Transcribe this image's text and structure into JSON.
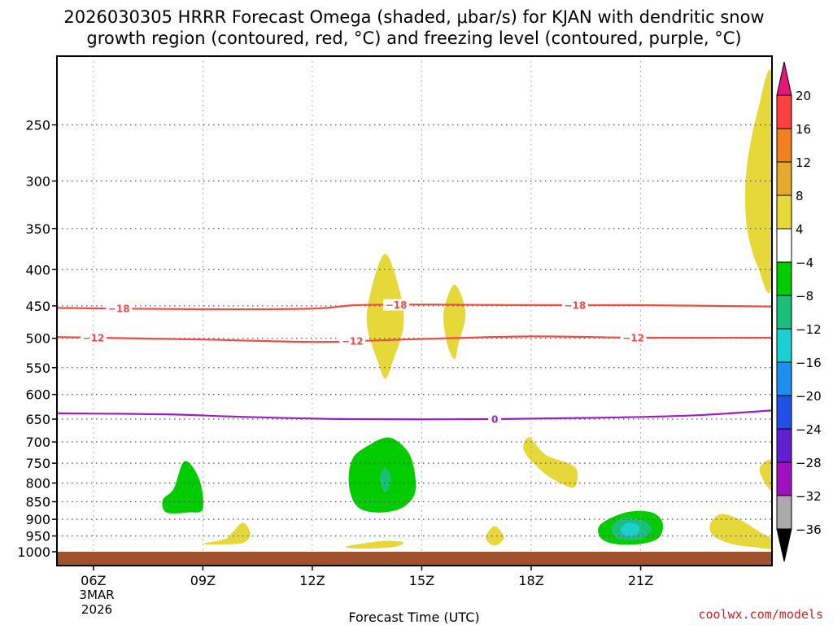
{
  "title_line1": "2026030305 HRRR Forecast Omega (shaded, μbar/s) for KJAN with dendritic snow",
  "title_line2": "growth region (contoured, red, °C) and freezing level (contoured, purple, °C)",
  "xlabel": "Forecast Time (UTC)",
  "date_label": [
    "3MAR",
    "2026"
  ],
  "watermark": "coolwx.com/models",
  "colors": {
    "ground": "#a0522d",
    "dgz_contour": "#f04a45",
    "freezing_contour": "#9b1fc8",
    "grid": "#999999"
  },
  "chart_data": {
    "type": "time-height cross-section",
    "x_unit": "hours since 05Z 3 Mar 2026",
    "x_range": [
      0,
      19.6
    ],
    "y_unit": "pressure (hPa), inverted log scale",
    "y_range": [
      1000,
      200
    ],
    "grid": true,
    "x_ticks": [
      {
        "label": "06Z",
        "hour": 1
      },
      {
        "label": "09Z",
        "hour": 4
      },
      {
        "label": "12Z",
        "hour": 7
      },
      {
        "label": "15Z",
        "hour": 10
      },
      {
        "label": "18Z",
        "hour": 13
      },
      {
        "label": "21Z",
        "hour": 16
      }
    ],
    "y_ticks": [
      250,
      300,
      350,
      400,
      450,
      500,
      550,
      600,
      650,
      700,
      750,
      800,
      850,
      900,
      950,
      1000
    ],
    "y_tick_labels": [
      "250",
      "300",
      "350",
      "400",
      "450",
      "500",
      "550",
      "600",
      "650",
      "700",
      "750",
      "800",
      "850",
      "900",
      "950",
      "1000"
    ],
    "ground_level_hpa": 1000,
    "colorbar": {
      "labels": [
        "20",
        "16",
        "12",
        "8",
        "4",
        "−4",
        "−8",
        "−12",
        "−16",
        "−20",
        "−24",
        "−28",
        "−32",
        "−36"
      ],
      "bands": [
        {
          "color": "#ff4040"
        },
        {
          "color": "#f08020"
        },
        {
          "color": "#e4aa30"
        },
        {
          "color": "#e6d838"
        },
        {
          "color": "#ffffff"
        },
        {
          "color": "#00cc00"
        },
        {
          "color": "#1bbf7a"
        },
        {
          "color": "#1ad0d0"
        },
        {
          "color": "#1e8ff0"
        },
        {
          "color": "#2050e8"
        },
        {
          "color": "#6020d0"
        },
        {
          "color": "#a010c0"
        },
        {
          "color": "#aaaaaa"
        }
      ],
      "top_arrow_color": "#e8157a",
      "bottom_arrow_color": "#000000"
    },
    "contours": [
      {
        "name": "dgz-minus18",
        "value": -18,
        "label": "−18",
        "color": "#f04a45",
        "points": [
          [
            0,
            453
          ],
          [
            4,
            455
          ],
          [
            7,
            454
          ],
          [
            8.2,
            449
          ],
          [
            10,
            448
          ],
          [
            13,
            449
          ],
          [
            16,
            449
          ],
          [
            19.6,
            451
          ]
        ],
        "label_hours": [
          1.7,
          9.3,
          14.2
        ]
      },
      {
        "name": "dgz-minus12",
        "value": -12,
        "label": "−12",
        "color": "#f04a45",
        "points": [
          [
            0,
            498
          ],
          [
            4,
            502
          ],
          [
            7,
            506
          ],
          [
            8.5,
            504
          ],
          [
            10,
            501
          ],
          [
            13,
            497
          ],
          [
            16,
            499
          ],
          [
            19.6,
            499
          ]
        ],
        "label_hours": [
          1.0,
          8.1,
          15.8
        ]
      },
      {
        "name": "freezing-level",
        "value": 0,
        "label": "0",
        "color": "#9b1fc8",
        "points": [
          [
            0,
            638
          ],
          [
            3,
            640
          ],
          [
            5,
            645
          ],
          [
            8,
            650
          ],
          [
            12,
            650
          ],
          [
            15,
            647
          ],
          [
            17.5,
            642
          ],
          [
            19.6,
            632
          ]
        ],
        "label_hours": [
          12.0
        ]
      }
    ],
    "shaded_regions": [
      {
        "name": "upward-4-to-8-a",
        "omega_range": [
          4,
          8
        ],
        "color": "#e6d838",
        "points": [
          [
            19.6,
            215
          ],
          [
            19.2,
            240
          ],
          [
            18.9,
            290
          ],
          [
            18.9,
            345
          ],
          [
            19.2,
            395
          ],
          [
            19.6,
            415
          ]
        ]
      },
      {
        "name": "upward-4-to-8-b",
        "omega_range": [
          4,
          8
        ],
        "color": "#e6d838",
        "points": [
          [
            9.0,
            380
          ],
          [
            9.4,
            430
          ],
          [
            9.5,
            480
          ],
          [
            9.2,
            540
          ],
          [
            9.0,
            570
          ],
          [
            8.8,
            540
          ],
          [
            8.5,
            480
          ],
          [
            8.6,
            430
          ]
        ]
      },
      {
        "name": "upward-4-to-8-c",
        "omega_range": [
          4,
          8
        ],
        "color": "#e6d838",
        "points": [
          [
            10.9,
            420
          ],
          [
            11.2,
            460
          ],
          [
            11.0,
            510
          ],
          [
            10.9,
            535
          ],
          [
            10.7,
            510
          ],
          [
            10.6,
            460
          ]
        ]
      },
      {
        "name": "upward-4-to-8-d",
        "omega_range": [
          4,
          8
        ],
        "color": "#e6d838",
        "points": [
          [
            12.95,
            690
          ],
          [
            13.4,
            730
          ],
          [
            14.2,
            760
          ],
          [
            14.2,
            810
          ],
          [
            13.8,
            800
          ],
          [
            13.3,
            770
          ],
          [
            12.8,
            720
          ]
        ]
      },
      {
        "name": "upward-4-to-8-e",
        "omega_range": [
          4,
          8
        ],
        "color": "#e6d838",
        "points": [
          [
            19.6,
            745
          ],
          [
            19.3,
            755
          ],
          [
            19.3,
            780
          ],
          [
            19.6,
            820
          ]
        ]
      },
      {
        "name": "upward-4-to-8-f",
        "omega_range": [
          4,
          8
        ],
        "color": "#e6d838",
        "points": [
          [
            18.2,
            885
          ],
          [
            18.7,
            900
          ],
          [
            19.3,
            940
          ],
          [
            19.6,
            960
          ],
          [
            19.6,
            990
          ],
          [
            19.1,
            985
          ],
          [
            18.5,
            975
          ],
          [
            18.0,
            950
          ],
          [
            17.9,
            915
          ]
        ]
      },
      {
        "name": "upward-4-to-8-g",
        "omega_range": [
          4,
          8
        ],
        "color": "#e6d838",
        "points": [
          [
            8.3,
            975
          ],
          [
            9.0,
            965
          ],
          [
            9.5,
            970
          ],
          [
            9.2,
            985
          ],
          [
            8.3,
            990
          ],
          [
            7.9,
            985
          ]
        ]
      },
      {
        "name": "upward-4-to-8-h",
        "omega_range": [
          4,
          8
        ],
        "color": "#e6d838",
        "points": [
          [
            5.1,
            910
          ],
          [
            5.3,
            940
          ],
          [
            5.2,
            965
          ],
          [
            4.9,
            975
          ],
          [
            4.0,
            975
          ],
          [
            4.6,
            960
          ],
          [
            4.8,
            940
          ]
        ]
      },
      {
        "name": "upward-4-to-8-i",
        "omega_range": [
          4,
          8
        ],
        "color": "#e6d838",
        "points": [
          [
            12.0,
            920
          ],
          [
            12.25,
            955
          ],
          [
            12.0,
            980
          ],
          [
            11.75,
            955
          ]
        ]
      },
      {
        "name": "downward-minus4-to-minus8-a",
        "omega_range": [
          -8,
          -4
        ],
        "color": "#00cc00",
        "points": [
          [
            3.5,
            745
          ],
          [
            3.9,
            790
          ],
          [
            4.0,
            870
          ],
          [
            3.6,
            880
          ],
          [
            3.0,
            880
          ],
          [
            2.9,
            845
          ],
          [
            3.2,
            815
          ]
        ]
      },
      {
        "name": "downward-minus4-to-minus8-b",
        "omega_range": [
          -8,
          -4
        ],
        "color": "#00cc00",
        "points": [
          [
            9.1,
            690
          ],
          [
            9.6,
            720
          ],
          [
            9.8,
            770
          ],
          [
            9.8,
            830
          ],
          [
            9.4,
            870
          ],
          [
            8.7,
            880
          ],
          [
            8.2,
            860
          ],
          [
            8.0,
            800
          ],
          [
            8.1,
            740
          ],
          [
            8.5,
            710
          ]
        ]
      },
      {
        "name": "downward-minus4-to-minus8-c",
        "omega_range": [
          -8,
          -4
        ],
        "color": "#00cc00",
        "points": [
          [
            15.6,
            880
          ],
          [
            16.3,
            880
          ],
          [
            16.6,
            910
          ],
          [
            16.5,
            955
          ],
          [
            16.0,
            975
          ],
          [
            15.3,
            975
          ],
          [
            14.9,
            955
          ],
          [
            14.9,
            915
          ]
        ]
      },
      {
        "name": "downward-minus8-to-minus12-a",
        "omega_range": [
          -12,
          -8
        ],
        "color": "#1bbf7a",
        "points": [
          [
            9.0,
            760
          ],
          [
            9.15,
            790
          ],
          [
            9.0,
            825
          ],
          [
            8.85,
            790
          ]
        ]
      },
      {
        "name": "downward-minus8-to-minus12-b",
        "omega_range": [
          -12,
          -8
        ],
        "color": "#1bbf7a",
        "points": [
          [
            15.6,
            895
          ],
          [
            16.1,
            905
          ],
          [
            16.3,
            930
          ],
          [
            16.0,
            960
          ],
          [
            15.4,
            960
          ],
          [
            15.2,
            930
          ],
          [
            15.35,
            905
          ]
        ]
      },
      {
        "name": "downward-minus12-to-minus16-a",
        "omega_range": [
          -16,
          -12
        ],
        "color": "#1ad0d0",
        "points": [
          [
            15.65,
            910
          ],
          [
            15.95,
            920
          ],
          [
            15.9,
            945
          ],
          [
            15.6,
            950
          ],
          [
            15.45,
            930
          ]
        ]
      }
    ]
  }
}
